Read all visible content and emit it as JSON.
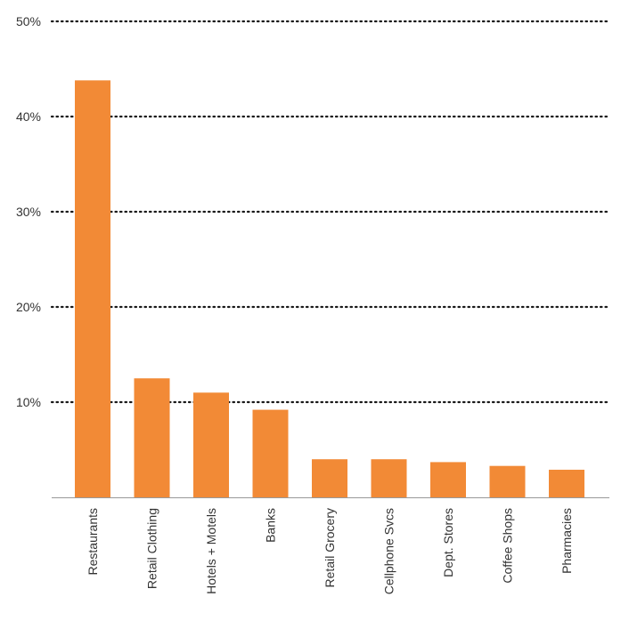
{
  "chart_data": {
    "type": "bar",
    "categories": [
      "Restaurants",
      "Retail Clothing",
      "Hotels + Motels",
      "Banks",
      "Retail Grocery",
      "Cellphone Svcs",
      "Dept. Stores",
      "Coffee Shops",
      "Pharmacies"
    ],
    "values": [
      43.8,
      12.5,
      11.0,
      9.2,
      4.0,
      4.0,
      3.7,
      3.3,
      2.9
    ],
    "yticks": [
      "50%",
      "40%",
      "30%",
      "20%",
      "10%"
    ],
    "ytick_values": [
      50,
      40,
      30,
      20,
      10
    ],
    "ylim": [
      0,
      50
    ],
    "grid": "dotted horizontal",
    "title": "",
    "xlabel": "",
    "ylabel": "",
    "bar_color": "#f28a36",
    "grid_color": "#1a1a1a",
    "axis_color": "#999999"
  }
}
